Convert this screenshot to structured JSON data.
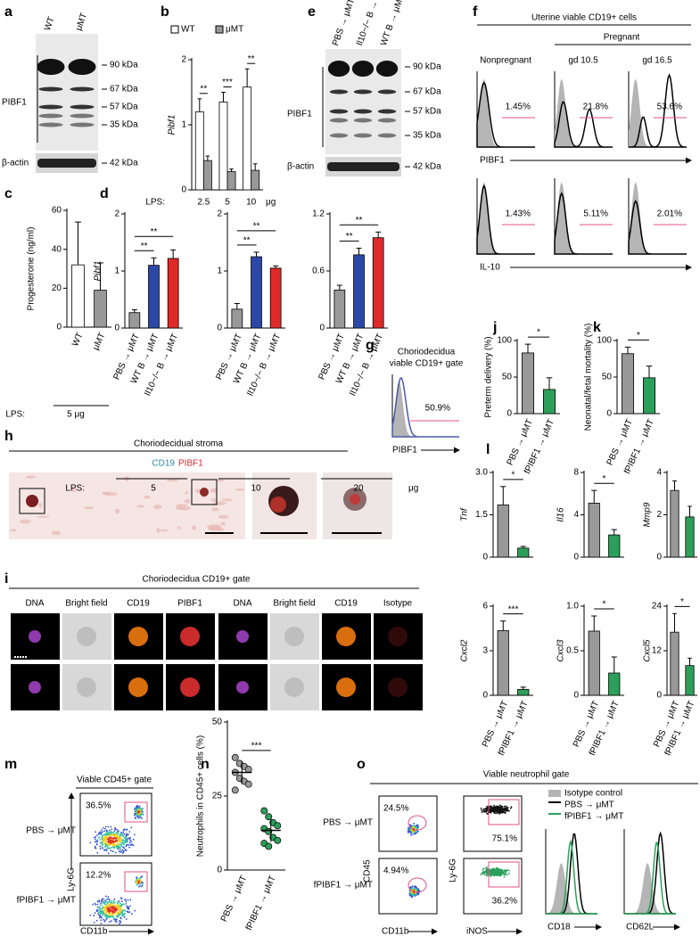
{
  "panel_labels": [
    "a",
    "b",
    "c",
    "d",
    "e",
    "f",
    "g",
    "h",
    "i",
    "j",
    "k",
    "l",
    "m",
    "n",
    "o"
  ],
  "blot_a": {
    "lanes": [
      "WT",
      "μMT"
    ],
    "protein": "PIBF1",
    "loading": "β-actin",
    "markers": [
      "90 kDa",
      "67 kDa",
      "57 kDa",
      "35 kDa"
    ],
    "loading_marker": "42 kDa"
  },
  "blot_e": {
    "lanes": [
      "PBS → μMT",
      "Il10−/− B → μMT",
      "WT B → μMT"
    ],
    "protein": "PIBF1",
    "loading": "β-actin",
    "markers": [
      "90 kDa",
      "67 kDa",
      "57 kDa",
      "35 kDa"
    ],
    "loading_marker": "42 kDa"
  },
  "flow_f": {
    "title": "Uterine viable CD19+ cells",
    "group": "Pregnant",
    "columns": [
      "Nonpregnant",
      "gd 10.5",
      "gd 16.5"
    ],
    "rows": [
      {
        "marker": "PIBF1",
        "percents": [
          "1.45%",
          "21.8%",
          "53.6%"
        ]
      },
      {
        "marker": "IL-10",
        "percents": [
          "1.43%",
          "5.11%",
          "2.01%"
        ]
      }
    ]
  },
  "flow_g": {
    "title_lines": [
      "Choriodecidua",
      "viable CD19+ gate"
    ],
    "percent": "50.9%",
    "marker": "PIBF1"
  },
  "image_h": {
    "title": "Choriodecidual stroma",
    "stains": [
      "CD19",
      "PIBF1"
    ]
  },
  "image_i": {
    "title": "Choriodecidua CD19+ gate",
    "channels": [
      "DNA",
      "Bright field",
      "CD19",
      "PIBF1",
      "DNA",
      "Bright field",
      "CD19",
      "Isotype"
    ]
  },
  "flow_m": {
    "title": "Viable CD45+ gate",
    "groups": [
      "PBS → μMT",
      "fPIBF1 → μMT"
    ],
    "percents": [
      "36.5%",
      "12.2%"
    ],
    "y_label": "Ly-6G",
    "x_label": "CD11b"
  },
  "flow_o": {
    "title": "Viable neutrophil gate",
    "groups": [
      "PBS → μMT",
      "fPIBF1 → μMT"
    ],
    "gate1_percents": [
      "24.5%",
      "4.94%"
    ],
    "gate1_y": "CD45",
    "gate1_x": "CD11b",
    "gate2_percents": [
      "75.1%",
      "36.2%"
    ],
    "gate2_y": "Ly-6G",
    "gate2_x": "iNOS",
    "legend": [
      "Isotype control",
      "PBS → μMT",
      "fPIBF1 → μMT"
    ],
    "hist_markers": [
      "CD18",
      "CD62L"
    ]
  },
  "chart_data": [
    {
      "type": "bar",
      "y_label": "Pibf1",
      "x_prefix": "LPS:",
      "categories": [
        "2.5",
        "5",
        "10"
      ],
      "x_unit": "μg",
      "series": [
        {
          "name": "WT",
          "color": "#ffffff",
          "values": [
            1.2,
            1.35,
            1.58
          ],
          "errors": [
            0.2,
            0.15,
            0.28
          ]
        },
        {
          "name": "μMT",
          "color": "#999999",
          "values": [
            0.45,
            0.28,
            0.3
          ],
          "errors": [
            0.07,
            0.04,
            0.1
          ]
        }
      ],
      "ylim": [
        0,
        2
      ],
      "yticks": [
        0,
        1,
        2
      ],
      "significance": [
        "**",
        "***",
        "**"
      ]
    },
    {
      "type": "bar",
      "y_label": "Progesterone (ng/ml)",
      "categories": [
        "WT",
        "μMT"
      ],
      "colors": [
        "#ffffff",
        "#999999"
      ],
      "values": [
        32,
        19
      ],
      "errors": [
        22,
        14
      ],
      "ylim": [
        0,
        60
      ],
      "yticks": [
        0,
        20,
        40,
        60
      ],
      "x_prefix": "LPS:",
      "dose": "5 μg"
    },
    {
      "type": "bar",
      "y_label": "Pibf1",
      "categories": [
        "PBS → μMT",
        "WT B → μMT",
        "Il10−/− B → μMT"
      ],
      "colors": [
        "#999999",
        "#2b48a8",
        "#e02a2a"
      ],
      "values": [
        0.27,
        1.1,
        1.22
      ],
      "errors": [
        0.05,
        0.13,
        0.15
      ],
      "ylim": [
        0,
        2
      ],
      "yticks": [
        0,
        1,
        2
      ],
      "significance": [
        "**",
        "**"
      ],
      "x_prefix": "LPS:",
      "dose": "5"
    },
    {
      "type": "bar",
      "categories": [
        "PBS → μMT",
        "WT B → μMT",
        "Il10−/− B → μMT"
      ],
      "colors": [
        "#999999",
        "#2b48a8",
        "#e02a2a"
      ],
      "values": [
        0.33,
        1.25,
        1.05
      ],
      "errors": [
        0.1,
        0.08,
        0.04
      ],
      "ylim": [
        0,
        2
      ],
      "yticks": [
        0,
        1,
        2
      ],
      "significance": [
        "**",
        "**"
      ],
      "dose": "10"
    },
    {
      "type": "bar",
      "categories": [
        "PBS → μMT",
        "WT B → μMT",
        "Il10−/− B → μMT"
      ],
      "colors": [
        "#999999",
        "#2b48a8",
        "#e02a2a"
      ],
      "values": [
        0.4,
        0.77,
        0.95
      ],
      "errors": [
        0.05,
        0.07,
        0.06
      ],
      "ylim": [
        0,
        1.2
      ],
      "yticks": [
        0,
        0.6,
        1.2
      ],
      "significance": [
        "**",
        "**"
      ],
      "dose": "20",
      "x_unit": "μg"
    },
    {
      "type": "bar",
      "y_label": "Preterm delivery (%)",
      "categories": [
        "PBS → μMT",
        "fPIBF1 → μMT"
      ],
      "colors": [
        "#999999",
        "#2ca05a"
      ],
      "values": [
        83,
        33
      ],
      "errors": [
        12,
        16
      ],
      "ylim": [
        0,
        100
      ],
      "yticks": [
        0,
        50,
        100
      ],
      "significance": [
        "*"
      ]
    },
    {
      "type": "bar",
      "y_label": "Neonatal/fetal mortality (%)",
      "categories": [
        "PBS → μMT",
        "fPIBF1 → μMT"
      ],
      "colors": [
        "#999999",
        "#2ca05a"
      ],
      "values": [
        82,
        49
      ],
      "errors": [
        9,
        16
      ],
      "ylim": [
        0,
        100
      ],
      "yticks": [
        0,
        50,
        100
      ],
      "significance": [
        "*"
      ]
    },
    {
      "type": "bar",
      "y_label": "Tnf",
      "colors": [
        "#999999",
        "#2ca05a"
      ],
      "values": [
        1.85,
        0.32
      ],
      "errors": [
        0.65,
        0.06
      ],
      "ylim": [
        0,
        3
      ],
      "yticks": [
        0,
        1.5,
        {
          "value": 3,
          "label": "3.0"
        }
      ],
      "significance": [
        "*"
      ]
    },
    {
      "type": "bar",
      "y_label": "Il16",
      "colors": [
        "#999999",
        "#2ca05a"
      ],
      "values": [
        5.1,
        2.1
      ],
      "errors": [
        1.2,
        0.5
      ],
      "ylim": [
        0,
        8
      ],
      "yticks": [
        0,
        4,
        8
      ],
      "significance": [
        "*"
      ]
    },
    {
      "type": "bar",
      "y_label": "Mmp9",
      "colors": [
        "#999999",
        "#2ca05a"
      ],
      "values": [
        3.15,
        1.9
      ],
      "errors": [
        0.45,
        0.5
      ],
      "ylim": [
        0,
        4
      ],
      "yticks": [
        0,
        2,
        4
      ]
    },
    {
      "type": "bar",
      "y_label": "Cxcl2",
      "categories": [
        "PBS → μMT",
        "fPIBF1 → μMT"
      ],
      "colors": [
        "#999999",
        "#2ca05a"
      ],
      "values": [
        4.35,
        0.4
      ],
      "errors": [
        0.65,
        0.15
      ],
      "ylim": [
        0,
        6
      ],
      "yticks": [
        0,
        3,
        6
      ],
      "significance": [
        "***"
      ]
    },
    {
      "type": "bar",
      "y_label": "Cxcl3",
      "categories": [
        "PBS → μMT",
        "fPIBF1 → μMT"
      ],
      "colors": [
        "#999999",
        "#2ca05a"
      ],
      "values": [
        0.72,
        0.25
      ],
      "errors": [
        0.17,
        0.18
      ],
      "ylim": [
        0,
        1
      ],
      "yticks": [
        0,
        0.5,
        {
          "value": 1,
          "label": "1.0"
        }
      ],
      "significance": [
        "*"
      ]
    },
    {
      "type": "bar",
      "y_label": "Cxcl5",
      "categories": [
        "PBS → μMT",
        "fPIBF1 → μMT"
      ],
      "colors": [
        "#999999",
        "#2ca05a"
      ],
      "values": [
        17,
        8
      ],
      "errors": [
        5,
        2
      ],
      "ylim": [
        0,
        24
      ],
      "yticks": [
        0,
        12,
        24
      ],
      "significance": [
        "*"
      ]
    },
    {
      "type": "dot",
      "y_label": "Neutrophils in CD45+ cells (%)",
      "categories": [
        "PBS → μMT",
        "fPIBF1 → μMT"
      ],
      "colors": [
        "#999999",
        "#2ca05a"
      ],
      "points": [
        [
          38,
          36,
          35,
          34,
          33,
          31,
          30,
          29,
          27
        ],
        [
          20,
          18,
          16,
          15,
          14,
          13,
          11,
          10,
          9,
          8
        ]
      ],
      "means": [
        33,
        13.4
      ],
      "errors": [
        3.6,
        3.8
      ],
      "ylim": [
        0,
        50
      ],
      "yticks": [
        0,
        25,
        50
      ],
      "significance": [
        "***"
      ]
    }
  ]
}
